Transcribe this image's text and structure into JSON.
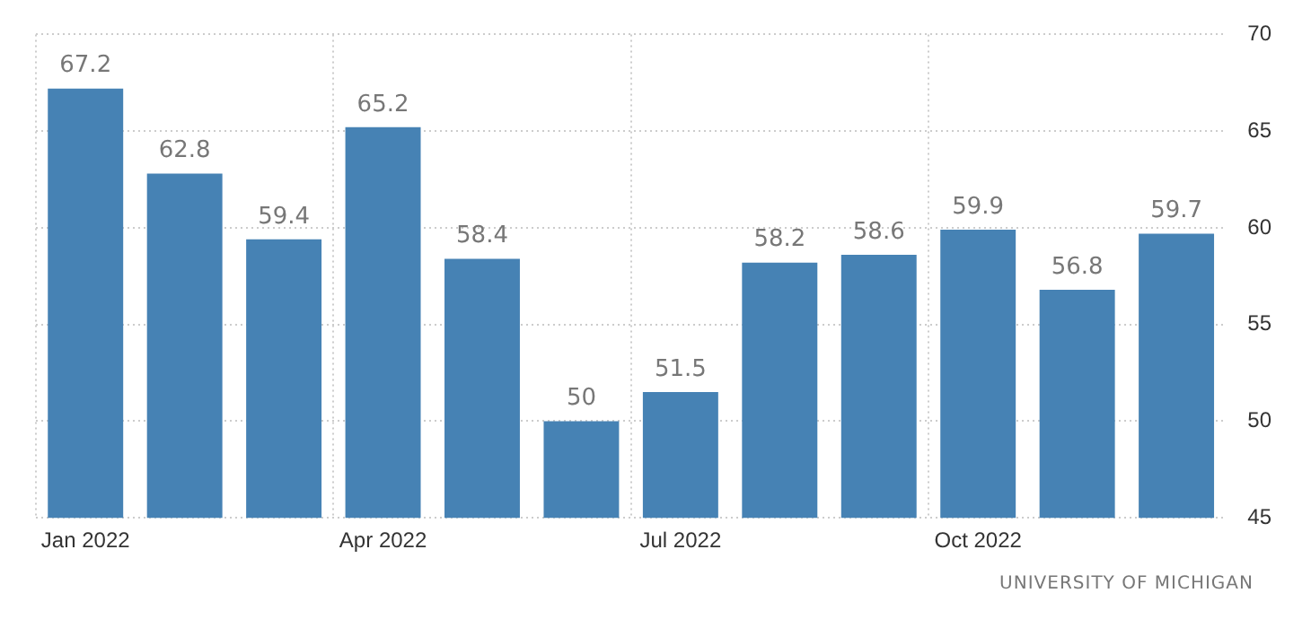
{
  "chart_data": {
    "type": "bar",
    "categories": [
      "Jan 2022",
      null,
      null,
      "Apr 2022",
      null,
      null,
      "Jul 2022",
      null,
      null,
      "Oct 2022",
      null,
      null
    ],
    "values": [
      67.2,
      62.8,
      59.4,
      65.2,
      58.4,
      50,
      51.5,
      58.2,
      58.6,
      59.9,
      56.8,
      59.7
    ],
    "color": "#4682b4",
    "ylim": [
      45,
      70
    ],
    "yticks": [
      45,
      50,
      55,
      60,
      65,
      70
    ],
    "grid": true,
    "data_labels": true,
    "legend": false,
    "annotations": [
      "UNIVERSITY OF MICHIGAN"
    ]
  }
}
